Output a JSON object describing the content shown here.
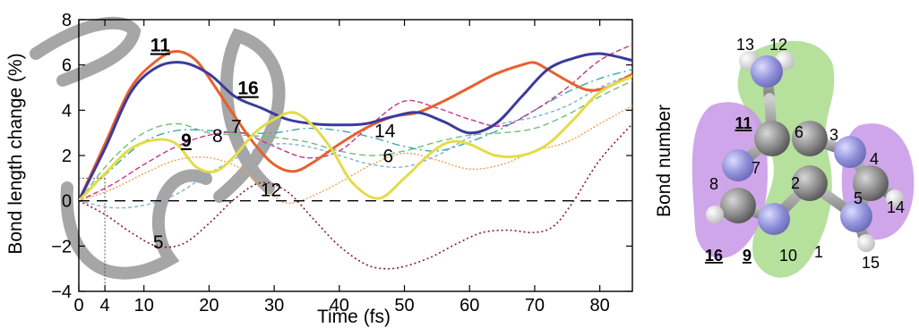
{
  "chart_data": {
    "type": "line",
    "xlabel": "Time (fs)",
    "ylabel": "Bond length change (%)",
    "xlim": [
      0,
      85
    ],
    "ylim": [
      -4,
      8
    ],
    "xticks": [
      "0",
      "4",
      "10",
      "20",
      "30",
      "40",
      "50",
      "60",
      "70",
      "80"
    ],
    "xtick_values": [
      0,
      4,
      10,
      20,
      30,
      40,
      50,
      60,
      70,
      80
    ],
    "yticks": [
      "−4",
      "−2",
      "0",
      "2",
      "4",
      "6",
      "8"
    ],
    "ytick_values": [
      -4,
      -2,
      0,
      2,
      4,
      6,
      8
    ],
    "zero_line": true,
    "grid": false,
    "series": [
      {
        "name": "11",
        "color": "#e8602c",
        "width": 3,
        "dash": "",
        "x": [
          0,
          4,
          8,
          12,
          15,
          18,
          21,
          24,
          27,
          30,
          33,
          36,
          40,
          44,
          48,
          52,
          56,
          60,
          64,
          68,
          70,
          72,
          75,
          78,
          81,
          85
        ],
        "y": [
          0,
          2.5,
          5.0,
          6.2,
          6.6,
          6.2,
          5.0,
          3.7,
          2.5,
          1.6,
          1.3,
          1.7,
          2.5,
          3.2,
          3.7,
          3.9,
          4.4,
          5.0,
          5.6,
          6.0,
          6.1,
          5.8,
          5.3,
          4.9,
          5.0,
          5.6
        ]
      },
      {
        "name": "16",
        "color": "#3c3a9c",
        "width": 3,
        "dash": "",
        "x": [
          0,
          4,
          8,
          12,
          16,
          20,
          24,
          28,
          32,
          36,
          40,
          44,
          48,
          52,
          56,
          60,
          64,
          68,
          72,
          76,
          80,
          85
        ],
        "y": [
          0,
          2.3,
          4.8,
          5.9,
          6.1,
          5.6,
          4.6,
          4.1,
          3.6,
          3.4,
          3.35,
          3.4,
          3.7,
          3.9,
          3.5,
          3.0,
          3.4,
          4.6,
          5.8,
          6.3,
          6.5,
          6.2
        ]
      },
      {
        "name": "9",
        "color": "#e3dc48",
        "width": 3,
        "dash": "",
        "x": [
          0,
          4,
          8,
          12,
          15,
          18,
          21,
          24,
          27,
          30,
          33,
          36,
          39,
          42,
          46,
          50,
          54,
          57,
          60,
          64,
          68,
          72,
          76,
          80,
          85
        ],
        "y": [
          0,
          1.2,
          2.3,
          2.7,
          2.5,
          1.5,
          1.3,
          2.0,
          3.0,
          3.6,
          3.9,
          3.3,
          2.2,
          0.8,
          0.1,
          1.0,
          2.1,
          2.6,
          2.5,
          2.0,
          2.0,
          2.5,
          3.6,
          4.8,
          5.5
        ]
      },
      {
        "name": "8",
        "color": "#6fbf7a",
        "width": 1.4,
        "dash": "7,4",
        "x": [
          0,
          5,
          10,
          15,
          20,
          25,
          30,
          35,
          40,
          45,
          50,
          55,
          60,
          65,
          70,
          75,
          80,
          85
        ],
        "y": [
          0,
          1.8,
          3.0,
          3.4,
          3.0,
          2.9,
          2.8,
          2.6,
          2.2,
          2.0,
          2.2,
          2.6,
          2.9,
          3.0,
          3.2,
          3.8,
          4.6,
          5.3
        ]
      },
      {
        "name": "7",
        "color": "#3fa6a6",
        "width": 1.4,
        "dash": "9,4,2,4",
        "x": [
          0,
          5,
          10,
          15,
          20,
          25,
          30,
          35,
          40,
          45,
          50,
          55,
          60,
          65,
          70,
          75,
          80,
          85
        ],
        "y": [
          0,
          1.4,
          2.6,
          3.1,
          3.1,
          3.0,
          3.0,
          3.2,
          3.1,
          2.8,
          2.4,
          2.2,
          2.6,
          3.2,
          4.0,
          4.8,
          5.4,
          5.8
        ]
      },
      {
        "name": "14",
        "color": "#c8338a",
        "width": 1.4,
        "dash": "6,3",
        "x": [
          0,
          5,
          10,
          15,
          20,
          25,
          30,
          35,
          40,
          45,
          50,
          55,
          60,
          65,
          70,
          75,
          80,
          85
        ],
        "y": [
          0,
          0.7,
          1.6,
          2.4,
          2.9,
          3.0,
          2.4,
          1.9,
          2.2,
          3.4,
          4.4,
          4.1,
          3.6,
          3.3,
          4.0,
          5.0,
          6.2,
          6.9
        ]
      },
      {
        "name": "6",
        "color": "#7fb0d8",
        "width": 1.4,
        "dash": "4,3",
        "x": [
          0,
          5,
          10,
          15,
          20,
          25,
          30,
          35,
          40,
          45,
          50,
          55,
          60,
          65,
          70,
          75,
          80,
          85
        ],
        "y": [
          0,
          -0.3,
          -0.2,
          0.3,
          1.2,
          2.0,
          2.5,
          2.4,
          2.0,
          1.6,
          1.5,
          2.0,
          2.8,
          3.4,
          3.7,
          4.2,
          5.0,
          5.6
        ]
      },
      {
        "name": "12",
        "color": "#f0a050",
        "width": 1.4,
        "dash": "2,2",
        "x": [
          0,
          5,
          10,
          15,
          20,
          25,
          30,
          32,
          35,
          40,
          45,
          50,
          55,
          60,
          65,
          70,
          75,
          80,
          85
        ],
        "y": [
          0,
          0.5,
          1.2,
          1.8,
          1.9,
          1.4,
          0.2,
          -0.1,
          0.1,
          0.8,
          1.6,
          2.1,
          1.8,
          1.4,
          1.6,
          2.2,
          2.6,
          3.4,
          4.2
        ]
      },
      {
        "name": "5",
        "color": "#8a1a2a",
        "width": 1.6,
        "dash": "2,3",
        "x": [
          0,
          4,
          8,
          12,
          16,
          20,
          24,
          28,
          32,
          36,
          40,
          44,
          47,
          50,
          54,
          58,
          62,
          66,
          70,
          73,
          76,
          80,
          85
        ],
        "y": [
          0,
          -0.6,
          -1.4,
          -2.0,
          -1.9,
          -1.0,
          0.1,
          0.8,
          0.4,
          -0.8,
          -2.0,
          -2.8,
          -3.0,
          -2.9,
          -2.5,
          -1.9,
          -1.4,
          -1.3,
          -1.4,
          -1.1,
          0.0,
          1.8,
          3.4
        ]
      }
    ],
    "series_labels": [
      {
        "text": "11",
        "bold": true,
        "x": 12.5,
        "y": 6.6
      },
      {
        "text": "16",
        "bold": true,
        "x": 26,
        "y": 4.7
      },
      {
        "text": "9",
        "bold": true,
        "x": 16.5,
        "y": 2.4
      },
      {
        "text": "8",
        "bold": false,
        "x": 21.3,
        "y": 2.6
      },
      {
        "text": "7",
        "bold": false,
        "x": 24.2,
        "y": 3.0
      },
      {
        "text": "14",
        "bold": false,
        "x": 47,
        "y": 2.8
      },
      {
        "text": "6",
        "bold": false,
        "x": 47.5,
        "y": 1.7
      },
      {
        "text": "12",
        "bold": false,
        "x": 29.5,
        "y": 0.2
      },
      {
        "text": "5",
        "bold": false,
        "x": 12.2,
        "y": -2.1
      }
    ],
    "guides": [
      {
        "axis": "y",
        "value": 1,
        "to_x": 4
      },
      {
        "axis": "x",
        "value": 4,
        "to_y": 1
      }
    ]
  },
  "molecule": {
    "ylabel": "Bond number",
    "labels": [
      {
        "text": "13",
        "bold": false
      },
      {
        "text": "12",
        "bold": false
      },
      {
        "text": "11",
        "bold": true
      },
      {
        "text": "6",
        "bold": false
      },
      {
        "text": "3",
        "bold": false
      },
      {
        "text": "4",
        "bold": false
      },
      {
        "text": "7",
        "bold": false
      },
      {
        "text": "8",
        "bold": false
      },
      {
        "text": "2",
        "bold": false
      },
      {
        "text": "14",
        "bold": false
      },
      {
        "text": "5",
        "bold": false
      },
      {
        "text": "16",
        "bold": true
      },
      {
        "text": "9",
        "bold": true
      },
      {
        "text": "10",
        "bold": false
      },
      {
        "text": "1",
        "bold": false
      },
      {
        "text": "15",
        "bold": false
      }
    ]
  }
}
